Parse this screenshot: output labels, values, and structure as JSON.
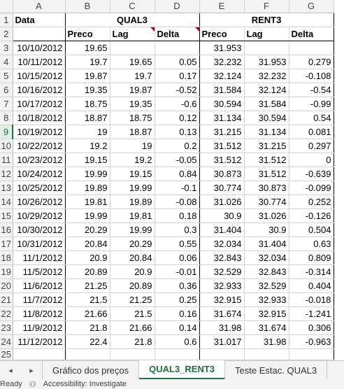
{
  "columns": [
    "A",
    "B",
    "C",
    "D",
    "E",
    "F",
    "G"
  ],
  "header_row1": {
    "a": "Data",
    "group1": "QUAL3",
    "group2": "RENT3"
  },
  "header_row2": {
    "b": "Preco",
    "c": "Lag",
    "d": "Delta",
    "e": "Preco",
    "f": "Lag",
    "g": "Delta"
  },
  "row_numbers": [
    "1",
    "2",
    "3",
    "4",
    "5",
    "6",
    "7",
    "8",
    "9",
    "10",
    "11",
    "12",
    "13",
    "14",
    "15",
    "16",
    "17",
    "18",
    "19",
    "20",
    "21",
    "22",
    "23",
    "24",
    "25"
  ],
  "rows": [
    [
      "10/10/2012",
      "19.65",
      "",
      "",
      "31.953",
      "",
      ""
    ],
    [
      "10/11/2012",
      "19.7",
      "19.65",
      "0.05",
      "32.232",
      "31.953",
      "0.279"
    ],
    [
      "10/15/2012",
      "19.87",
      "19.7",
      "0.17",
      "32.124",
      "32.232",
      "-0.108"
    ],
    [
      "10/16/2012",
      "19.35",
      "19.87",
      "-0.52",
      "31.584",
      "32.124",
      "-0.54"
    ],
    [
      "10/17/2012",
      "18.75",
      "19.35",
      "-0.6",
      "30.594",
      "31.584",
      "-0.99"
    ],
    [
      "10/18/2012",
      "18.87",
      "18.75",
      "0.12",
      "31.134",
      "30.594",
      "0.54"
    ],
    [
      "10/19/2012",
      "19",
      "18.87",
      "0.13",
      "31.215",
      "31.134",
      "0.081"
    ],
    [
      "10/22/2012",
      "19.2",
      "19",
      "0.2",
      "31.512",
      "31.215",
      "0.297"
    ],
    [
      "10/23/2012",
      "19.15",
      "19.2",
      "-0.05",
      "31.512",
      "31.512",
      "0"
    ],
    [
      "10/24/2012",
      "19.99",
      "19.15",
      "0.84",
      "30.873",
      "31.512",
      "-0.639"
    ],
    [
      "10/25/2012",
      "19.89",
      "19.99",
      "-0.1",
      "30.774",
      "30.873",
      "-0.099"
    ],
    [
      "10/26/2012",
      "19.81",
      "19.89",
      "-0.08",
      "31.026",
      "30.774",
      "0.252"
    ],
    [
      "10/29/2012",
      "19.99",
      "19.81",
      "0.18",
      "30.9",
      "31.026",
      "-0.126"
    ],
    [
      "10/30/2012",
      "20.29",
      "19.99",
      "0.3",
      "31.404",
      "30.9",
      "0.504"
    ],
    [
      "10/31/2012",
      "20.84",
      "20.29",
      "0.55",
      "32.034",
      "31.404",
      "0.63"
    ],
    [
      "11/1/2012",
      "20.9",
      "20.84",
      "0.06",
      "32.843",
      "32.034",
      "0.809"
    ],
    [
      "11/5/2012",
      "20.89",
      "20.9",
      "-0.01",
      "32.529",
      "32.843",
      "-0.314"
    ],
    [
      "11/6/2012",
      "21.25",
      "20.89",
      "0.36",
      "32.933",
      "32.529",
      "0.404"
    ],
    [
      "11/7/2012",
      "21.5",
      "21.25",
      "0.25",
      "32.915",
      "32.933",
      "-0.018"
    ],
    [
      "11/8/2012",
      "21.66",
      "21.5",
      "0.16",
      "31.674",
      "32.915",
      "-1.241"
    ],
    [
      "11/9/2012",
      "21.8",
      "21.66",
      "0.14",
      "31.98",
      "31.674",
      "0.306"
    ],
    [
      "11/12/2012",
      "22.4",
      "21.8",
      "0.6",
      "31.017",
      "31.98",
      "-0.963"
    ]
  ],
  "tabs": {
    "prev": "◂",
    "next": "▸",
    "t1": "Gráfico dos preços",
    "t2": "QUAL3_RENT3",
    "t3": "Teste Estac. QUAL3"
  },
  "status": {
    "ready": "Ready",
    "accessibility": "Accessibility: Investigate"
  }
}
